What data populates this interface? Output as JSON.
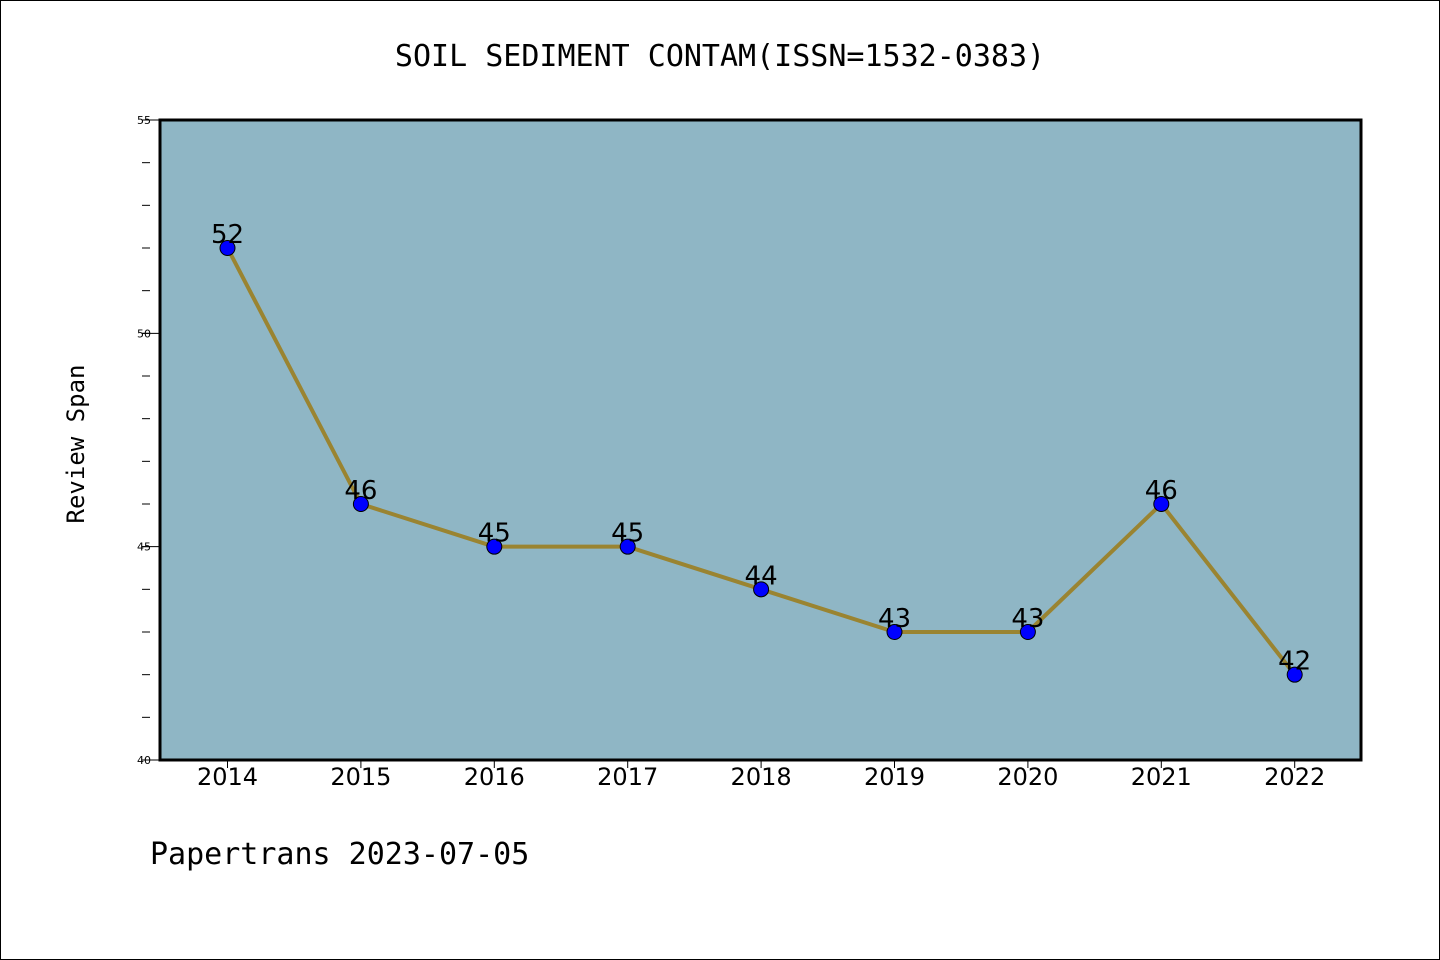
{
  "chart_data": {
    "type": "line",
    "title": "SOIL SEDIMENT CONTAM(ISSN=1532-0383)",
    "xlabel": "",
    "ylabel": "Review Span",
    "categories": [
      "2014",
      "2015",
      "2016",
      "2017",
      "2018",
      "2019",
      "2020",
      "2021",
      "2022"
    ],
    "values": [
      52,
      46,
      45,
      45,
      44,
      43,
      43,
      46,
      42
    ],
    "data_labels": [
      "52",
      "46",
      "45",
      "45",
      "44",
      "43",
      "43",
      "46",
      "42"
    ],
    "ylim": [
      40,
      55
    ],
    "y_major_ticks": [
      40,
      45,
      50,
      55
    ],
    "y_tick_labels": [
      "40",
      "45",
      "50",
      "55"
    ],
    "y_minor_step": 1,
    "grid": false,
    "legend": "none",
    "colors": {
      "plot_background": "#8fb6c5",
      "line": "#9a8431",
      "marker": "#0000ff",
      "axis": "#000000",
      "text": "#000000"
    }
  },
  "footer": {
    "text": "Papertrans 2023-07-05"
  }
}
